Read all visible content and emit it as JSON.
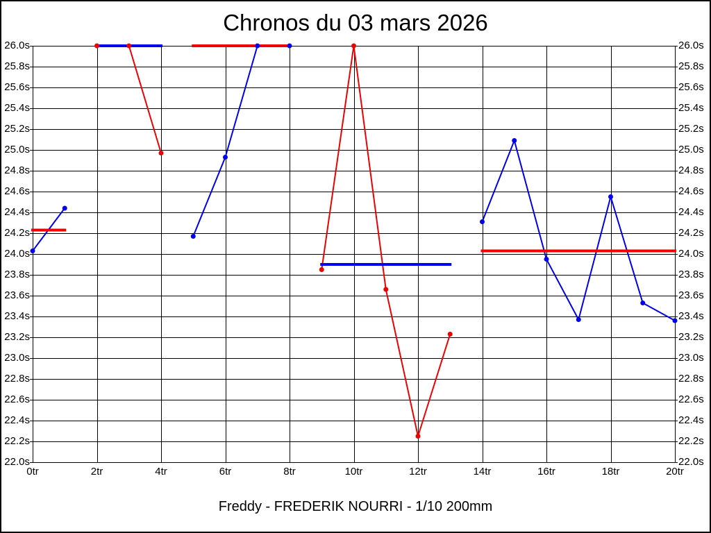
{
  "chart_data": {
    "type": "line",
    "title": "Chronos du 03 mars 2026",
    "caption": "Freddy - FREDERIK NOURRI - 1/10 200mm",
    "x_unit": "tr",
    "y_unit": "s",
    "xlim": [
      0,
      20
    ],
    "ylim": [
      22.0,
      26.0
    ],
    "x_tick_step": 2,
    "y_tick_step": 0.2,
    "grid": true,
    "legend": "none",
    "x_tick_labels": [
      "0tr",
      "2tr",
      "4tr",
      "6tr",
      "8tr",
      "10tr",
      "12tr",
      "14tr",
      "16tr",
      "18tr",
      "20tr"
    ],
    "y_tick_labels": [
      "26.0s",
      "25.8s",
      "25.6s",
      "25.4s",
      "25.2s",
      "25.0s",
      "24.8s",
      "24.6s",
      "24.4s",
      "24.2s",
      "24.0s",
      "23.8s",
      "23.6s",
      "23.4s",
      "23.2s",
      "23.0s",
      "22.8s",
      "22.6s",
      "22.4s",
      "22.2s",
      "22.0s"
    ],
    "colors": {
      "blue": "#0000ee",
      "red": "#ee0000"
    },
    "segments": [
      {
        "name": "laps-0-1",
        "color": "blue",
        "points": [
          [
            0,
            24.03
          ],
          [
            1,
            24.44
          ]
        ],
        "mean_value": 24.23,
        "mean_color": "red",
        "mean_span": [
          0,
          1
        ]
      },
      {
        "name": "laps-2-4",
        "color": "red",
        "points": [
          [
            2,
            26.0
          ],
          [
            3,
            26.0
          ],
          [
            4,
            24.97
          ]
        ],
        "mean_value": 26.0,
        "mean_color": "blue",
        "mean_span": [
          2,
          4
        ]
      },
      {
        "name": "laps-5-8",
        "color": "blue",
        "points": [
          [
            5,
            24.17
          ],
          [
            6,
            24.93
          ],
          [
            7,
            26.0
          ],
          [
            8,
            26.0
          ]
        ],
        "mean_value": 26.0,
        "mean_color": "red",
        "mean_span": [
          5,
          8
        ]
      },
      {
        "name": "laps-9-13",
        "color": "red",
        "points": [
          [
            9,
            23.85
          ],
          [
            10,
            26.0
          ],
          [
            11,
            23.66
          ],
          [
            12,
            22.25
          ],
          [
            13,
            23.23
          ]
        ],
        "mean_value": 23.9,
        "mean_color": "blue",
        "mean_span": [
          9,
          13
        ]
      },
      {
        "name": "laps-14-20",
        "color": "blue",
        "points": [
          [
            14,
            24.31
          ],
          [
            15,
            25.09
          ],
          [
            16,
            23.95
          ],
          [
            17,
            23.37
          ],
          [
            18,
            24.55
          ],
          [
            19,
            23.53
          ],
          [
            20,
            23.36
          ]
        ],
        "mean_value": 24.03,
        "mean_color": "red",
        "mean_span": [
          14,
          20
        ]
      }
    ]
  }
}
